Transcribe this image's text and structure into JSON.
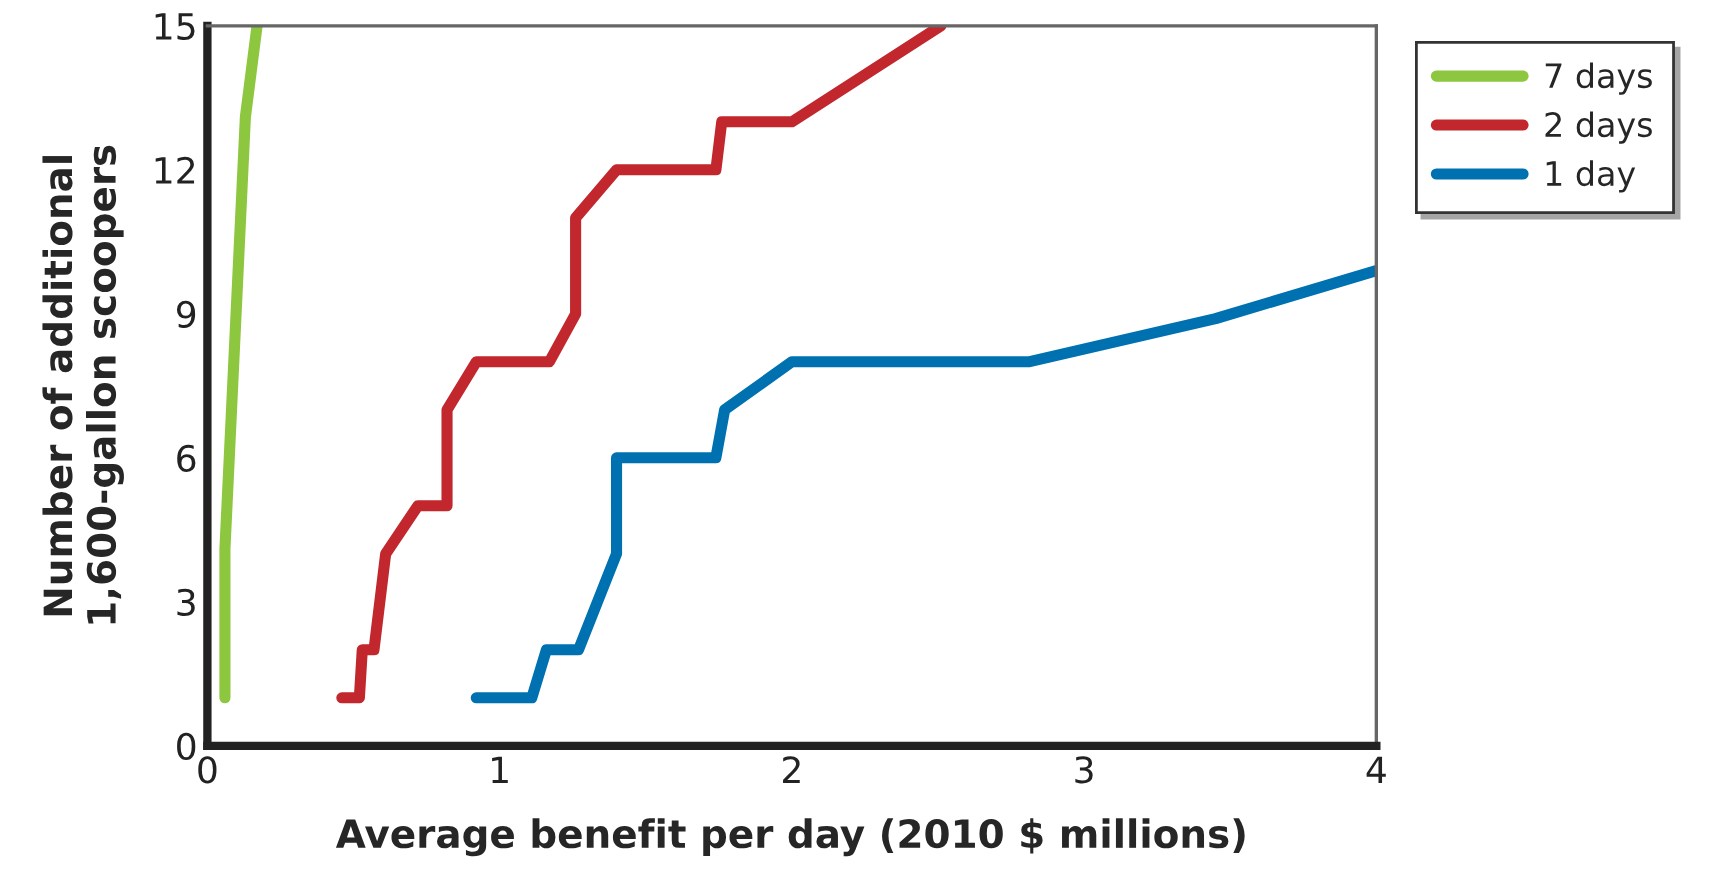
{
  "chart_data": {
    "type": "line",
    "xlabel": "Average benefit per day (2010 $ millions)",
    "ylabel": "Number of additional\n1,600-gallon scoopers",
    "xlim": [
      0,
      4
    ],
    "xticks": [
      0,
      1,
      2,
      3,
      4
    ],
    "ylim": [
      0,
      15
    ],
    "yticks": [
      0,
      3,
      6,
      9,
      12,
      15
    ],
    "grid": false,
    "legend": "top right",
    "marker": "none",
    "line_style": "solid",
    "series": [
      {
        "name": "7 days",
        "color": "#8dc63f",
        "x": [
          0.06,
          0.06,
          0.13,
          0.17
        ],
        "values": [
          1,
          4.1,
          13.1,
          15
        ]
      },
      {
        "name": "2 days",
        "color": "#c1272d",
        "x": [
          0.46,
          0.52,
          0.53,
          0.57,
          0.61,
          0.72,
          0.82,
          0.82,
          0.92,
          1.17,
          1.26,
          1.26,
          1.4,
          1.74,
          1.76,
          2.0,
          2.51
        ],
        "values": [
          1,
          1,
          2,
          2,
          4,
          5,
          5,
          7,
          8,
          8,
          9,
          11,
          12,
          12,
          13,
          13,
          15
        ]
      },
      {
        "name": "1 day",
        "color": "#0071b0",
        "x": [
          0.92,
          1.11,
          1.16,
          1.27,
          1.4,
          1.4,
          1.74,
          1.77,
          2.0,
          2.81,
          3.45,
          4.0
        ],
        "values": [
          1,
          1,
          2,
          2,
          4,
          6,
          6,
          7,
          8,
          8,
          8.9,
          9.9
        ]
      }
    ]
  }
}
